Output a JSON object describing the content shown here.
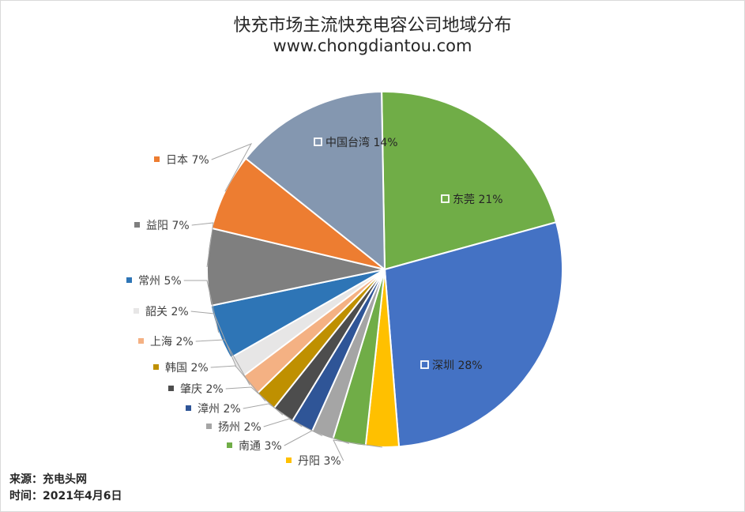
{
  "title": "快充市场主流快充电容公司地域分布",
  "subtitle": "www.chongdiantou.com",
  "footer": {
    "source": "来源：充电头网",
    "date": "时间：2021年4月6日"
  },
  "chart_data": {
    "type": "pie",
    "title": "快充市场主流快充电容公司地域分布",
    "subtitle": "www.chongdiantou.com",
    "start_angle_deg": 91,
    "direction": "clockwise",
    "slices": [
      {
        "label": "东莞",
        "value": 21,
        "display": "21%",
        "color": "#70AD47"
      },
      {
        "label": "深圳",
        "value": 28,
        "display": "28%",
        "color": "#4472C4"
      },
      {
        "label": "丹阳",
        "value": 3,
        "display": "3%",
        "color": "#FFC000"
      },
      {
        "label": "南通",
        "value": 3,
        "display": "3%",
        "color": "#70AD47"
      },
      {
        "label": "扬州",
        "value": 2,
        "display": "2%",
        "color": "#A5A5A5"
      },
      {
        "label": "漳州",
        "value": 2,
        "display": "2%",
        "color": "#2F5597"
      },
      {
        "label": "肇庆",
        "value": 2,
        "display": "2%",
        "color": "#4D4D4D"
      },
      {
        "label": "韩国",
        "value": 2,
        "display": "2%",
        "color": "#BF9000"
      },
      {
        "label": "上海",
        "value": 2,
        "display": "2%",
        "color": "#F4B183"
      },
      {
        "label": "韶关",
        "value": 2,
        "display": "2%",
        "color": "#E7E6E6"
      },
      {
        "label": "常州",
        "value": 5,
        "display": "5%",
        "color": "#2E75B6"
      },
      {
        "label": "益阳",
        "value": 7,
        "display": "7%",
        "color": "#7F7F7F"
      },
      {
        "label": "日本",
        "value": 7,
        "display": "7%",
        "color": "#ED7D31"
      },
      {
        "label": "中国台湾",
        "value": 14,
        "display": "14%",
        "color": "#8497B0"
      }
    ]
  }
}
